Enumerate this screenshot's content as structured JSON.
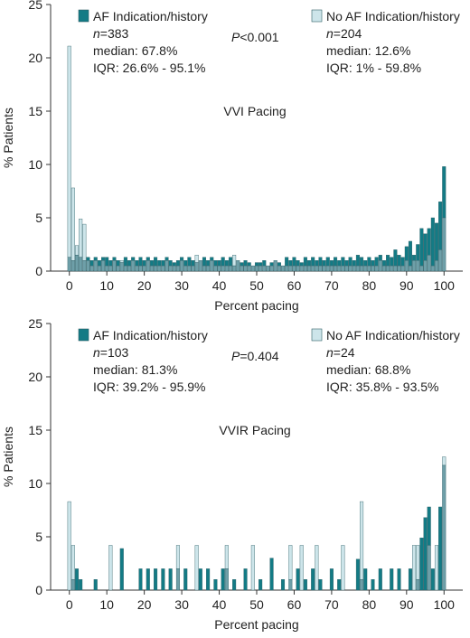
{
  "chart_data": [
    {
      "type": "bar",
      "title": "VVI Pacing",
      "p_value_label": "P<0.001",
      "xlabel": "Percent pacing",
      "ylabel": "% Patients",
      "xlim": [
        -5,
        105
      ],
      "ylim": [
        0,
        25
      ],
      "xticks": [
        "0",
        "10",
        "20",
        "30",
        "40",
        "50",
        "60",
        "70",
        "80",
        "90",
        "100"
      ],
      "yticks": [
        "0",
        "5",
        "10",
        "15",
        "20",
        "25"
      ],
      "grid": false,
      "bin_width": 1,
      "series": [
        {
          "name": "AF Indication/history",
          "color": "#137b85",
          "legend_lines": [
            "n=383",
            "median: 67.8%",
            "IQR: 26.6% - 95.1%"
          ],
          "x": [
            0,
            1,
            2,
            3,
            4,
            5,
            6,
            7,
            8,
            9,
            10,
            11,
            12,
            13,
            14,
            15,
            16,
            17,
            18,
            19,
            20,
            21,
            22,
            23,
            24,
            25,
            26,
            27,
            28,
            29,
            30,
            31,
            32,
            33,
            34,
            35,
            36,
            37,
            38,
            39,
            40,
            41,
            42,
            43,
            44,
            45,
            46,
            47,
            48,
            49,
            50,
            51,
            52,
            53,
            54,
            55,
            56,
            57,
            58,
            59,
            60,
            61,
            62,
            63,
            64,
            65,
            66,
            67,
            68,
            69,
            70,
            71,
            72,
            73,
            74,
            75,
            76,
            77,
            78,
            79,
            80,
            81,
            82,
            83,
            84,
            85,
            86,
            87,
            88,
            89,
            90,
            91,
            92,
            93,
            94,
            95,
            96,
            97,
            98,
            99,
            100
          ],
          "values": [
            1.3,
            1.0,
            1.5,
            1.3,
            1.0,
            1.3,
            1.0,
            1.3,
            1.0,
            1.3,
            1.3,
            1.0,
            1.3,
            1.0,
            0.8,
            1.3,
            1.0,
            1.3,
            1.0,
            1.3,
            1.0,
            1.3,
            1.0,
            1.3,
            1.0,
            1.0,
            1.3,
            1.0,
            0.8,
            1.0,
            1.3,
            1.0,
            1.3,
            1.0,
            0.8,
            1.0,
            1.3,
            1.0,
            1.3,
            1.0,
            1.0,
            1.3,
            1.0,
            1.3,
            0.5,
            1.0,
            0.8,
            1.0,
            0.8,
            0.5,
            0.8,
            0.8,
            1.0,
            0.5,
            0.8,
            1.0,
            0.8,
            0.5,
            1.3,
            1.0,
            1.3,
            1.0,
            0.8,
            1.3,
            1.0,
            1.3,
            1.0,
            1.3,
            1.0,
            1.3,
            1.0,
            1.3,
            1.0,
            1.3,
            1.0,
            1.3,
            1.0,
            1.5,
            1.3,
            1.0,
            1.3,
            1.0,
            1.3,
            1.5,
            1.0,
            1.5,
            1.3,
            2.0,
            1.5,
            1.3,
            2.3,
            2.8,
            1.5,
            2.5,
            4.0,
            3.5,
            4.0,
            5.0,
            4.5,
            6.5,
            9.8
          ]
        },
        {
          "name": "No AF Indication/history",
          "color": "#cde5ea",
          "legend_lines": [
            "n=204",
            "median: 12.6%",
            "IQR: 1% - 59.8%"
          ],
          "x": [
            0,
            1,
            2,
            3,
            4,
            5,
            6,
            7,
            8,
            9,
            10,
            11,
            12,
            13,
            14,
            15,
            16,
            17,
            18,
            19,
            20,
            21,
            22,
            23,
            24,
            25,
            26,
            27,
            28,
            29,
            30,
            31,
            32,
            33,
            34,
            35,
            36,
            37,
            38,
            39,
            40,
            41,
            42,
            43,
            44,
            45,
            46,
            47,
            48,
            49,
            50,
            51,
            52,
            53,
            54,
            55,
            56,
            57,
            58,
            59,
            60,
            61,
            62,
            63,
            64,
            65,
            66,
            67,
            68,
            69,
            70,
            71,
            72,
            73,
            74,
            75,
            76,
            77,
            78,
            79,
            80,
            81,
            82,
            83,
            84,
            85,
            86,
            87,
            88,
            89,
            90,
            91,
            92,
            93,
            94,
            95,
            96,
            97,
            98,
            99,
            100
          ],
          "values": [
            21.1,
            7.8,
            2.4,
            4.9,
            4.4,
            1.0,
            0.5,
            1.0,
            0.5,
            1.0,
            0.5,
            0.5,
            1.0,
            0.5,
            1.0,
            0.5,
            0.5,
            1.0,
            0.5,
            0.5,
            0.5,
            1.0,
            0.5,
            0.5,
            0.5,
            0.5,
            1.0,
            0.5,
            0.5,
            0.5,
            1.0,
            0.5,
            0.5,
            0.5,
            1.5,
            1.0,
            0.5,
            0.5,
            1.0,
            0.5,
            0.5,
            0.5,
            0.5,
            0.5,
            1.5,
            1.0,
            0.5,
            0.5,
            0.5,
            0.5,
            0.5,
            0.5,
            0.5,
            0.5,
            0.5,
            1.0,
            0.5,
            0.5,
            0.5,
            0.5,
            0.5,
            0.5,
            0.5,
            0.5,
            0.5,
            0.5,
            0.5,
            0.5,
            0.5,
            0.5,
            0.5,
            0.5,
            0.5,
            0.5,
            0.5,
            0.5,
            0.5,
            0.5,
            0.5,
            0.5,
            0.5,
            0.5,
            0.5,
            1.0,
            0.5,
            0.5,
            0.5,
            0.5,
            0.5,
            0.5,
            1.0,
            0.5,
            1.0,
            1.0,
            0.5,
            1.0,
            1.5,
            0.5,
            1.0,
            2.0,
            5.0
          ]
        }
      ]
    },
    {
      "type": "bar",
      "title": "VVIR Pacing",
      "p_value_label": "P=0.404",
      "xlabel": "Percent pacing",
      "ylabel": "% Patients",
      "xlim": [
        -5,
        105
      ],
      "ylim": [
        0,
        25
      ],
      "xticks": [
        "0",
        "10",
        "20",
        "30",
        "40",
        "50",
        "60",
        "70",
        "80",
        "90",
        "100"
      ],
      "yticks": [
        "0",
        "5",
        "10",
        "15",
        "20",
        "25"
      ],
      "grid": false,
      "bin_width": 1,
      "series": [
        {
          "name": "AF Indication/history",
          "color": "#137b85",
          "legend_lines": [
            "n=103",
            "median: 81.3%",
            "IQR: 39.2% - 95.9%"
          ],
          "x": [
            1,
            2,
            3,
            7,
            14,
            19,
            21,
            23,
            25,
            27,
            29,
            31,
            35,
            37,
            39,
            41,
            42,
            44,
            47,
            51,
            54,
            57,
            59,
            61,
            63,
            65,
            67,
            70,
            72,
            77,
            78,
            79,
            81,
            83,
            86,
            88,
            91,
            93,
            94,
            95,
            96,
            97,
            99,
            100
          ],
          "values": [
            1,
            2,
            1,
            1,
            3.9,
            2,
            2,
            2,
            2,
            2,
            2,
            2,
            2,
            2,
            1,
            2,
            2,
            1,
            2,
            1,
            3,
            1,
            1,
            2,
            1,
            2,
            1,
            2,
            1,
            2.9,
            1,
            2,
            1,
            2,
            2,
            2,
            2,
            1,
            4.9,
            6.8,
            7.8,
            2,
            7.8,
            11.7
          ]
        },
        {
          "name": "No AF Indication/history",
          "color": "#cde5ea",
          "legend_lines": [
            "n=24",
            "median: 68.8%",
            "IQR: 35.8% - 93.5%"
          ],
          "x": [
            0,
            1,
            11,
            29,
            34,
            42,
            49,
            59,
            62,
            66,
            73,
            78,
            92,
            93,
            96,
            98,
            100
          ],
          "values": [
            8.3,
            4.2,
            4.2,
            4.2,
            4.2,
            4.2,
            4.2,
            4.2,
            4.2,
            4.2,
            4.2,
            8.3,
            4.2,
            4.2,
            4.2,
            4.2,
            12.5
          ]
        }
      ]
    }
  ]
}
